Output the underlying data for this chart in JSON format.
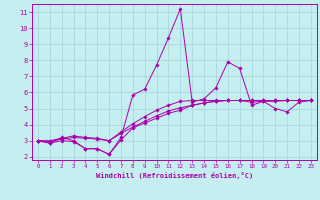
{
  "xlabel": "Windchill (Refroidissement éolien,°C)",
  "background_color": "#c5eef0",
  "grid_color": "#a8d8dc",
  "line_color": "#aa00aa",
  "xlim": [
    -0.5,
    23.5
  ],
  "ylim": [
    1.8,
    11.5
  ],
  "xticks": [
    0,
    1,
    2,
    3,
    4,
    5,
    6,
    7,
    8,
    9,
    10,
    11,
    12,
    13,
    14,
    15,
    16,
    17,
    18,
    19,
    20,
    21,
    22,
    23
  ],
  "yticks": [
    2,
    3,
    4,
    5,
    6,
    7,
    8,
    9,
    10,
    11
  ],
  "series": [
    [
      3.0,
      2.85,
      3.2,
      3.0,
      2.5,
      2.5,
      2.15,
      3.2,
      5.85,
      6.2,
      7.7,
      9.4,
      11.2,
      5.4,
      5.6,
      6.3,
      7.9,
      7.5,
      5.2,
      5.45,
      5.0,
      4.8,
      5.4,
      5.5
    ],
    [
      3.0,
      2.85,
      3.0,
      2.95,
      2.5,
      2.5,
      2.15,
      3.05,
      3.8,
      4.1,
      4.4,
      4.7,
      4.9,
      5.2,
      5.35,
      5.45,
      5.5,
      5.5,
      5.4,
      5.45,
      5.45,
      5.5,
      5.5,
      5.5
    ],
    [
      3.0,
      2.95,
      3.1,
      3.2,
      3.15,
      3.1,
      3.0,
      3.45,
      3.85,
      4.2,
      4.55,
      4.85,
      5.05,
      5.2,
      5.35,
      5.45,
      5.5,
      5.5,
      5.5,
      5.5,
      5.5,
      5.5,
      5.5,
      5.5
    ],
    [
      3.0,
      3.0,
      3.15,
      3.3,
      3.2,
      3.15,
      3.0,
      3.55,
      4.05,
      4.5,
      4.9,
      5.2,
      5.45,
      5.5,
      5.5,
      5.5,
      5.5,
      5.5,
      5.5,
      5.5,
      5.5,
      5.5,
      5.5,
      5.5
    ]
  ]
}
